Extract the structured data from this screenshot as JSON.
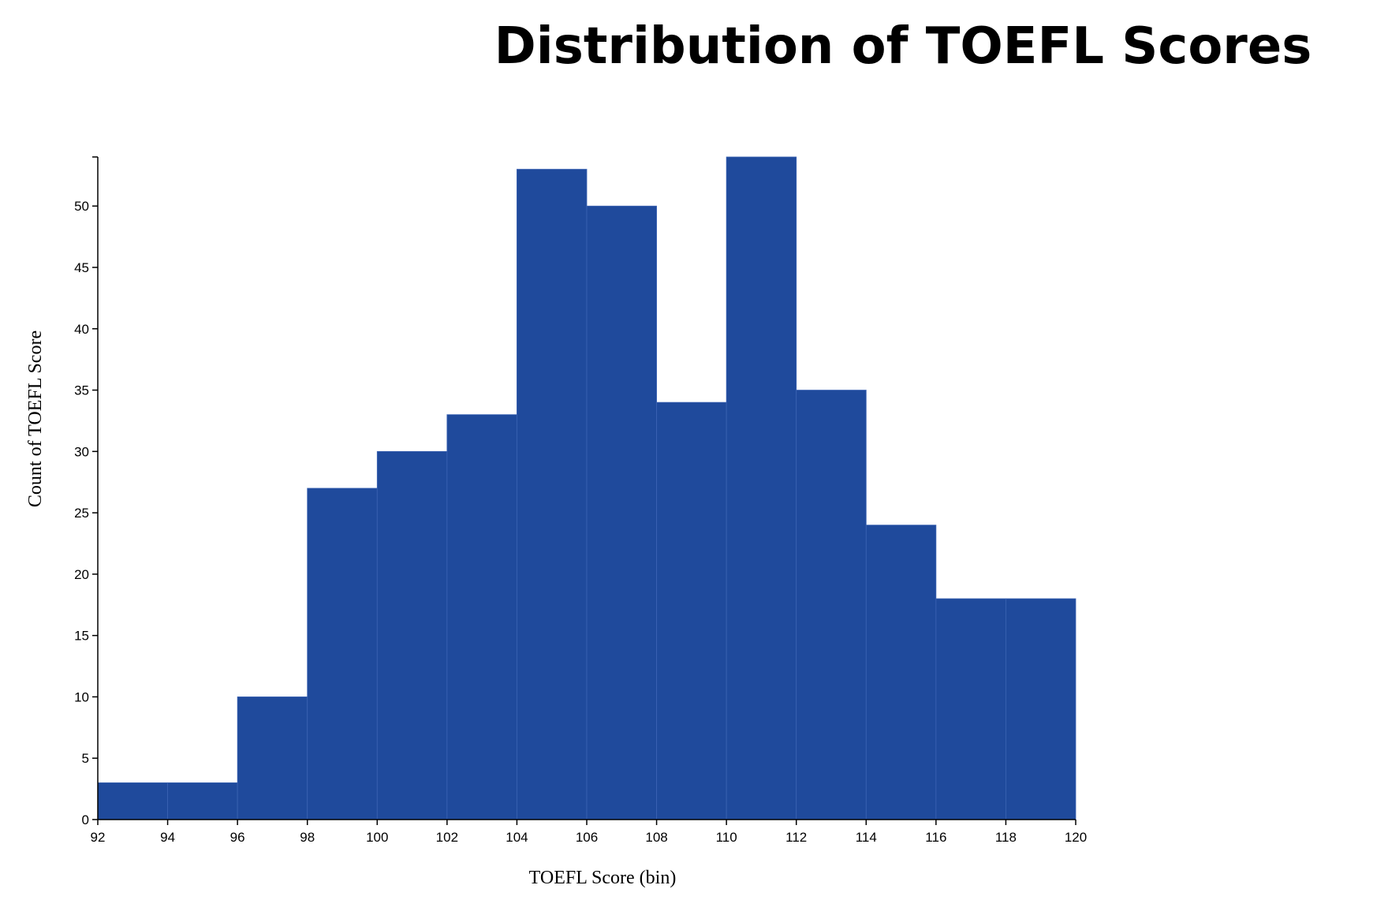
{
  "chart_data": {
    "type": "bar",
    "title": "Distribution of TOEFL Scores",
    "xlabel": "TOEFL Score (bin)",
    "ylabel": "Count of TOEFL Score",
    "bins": [
      {
        "x0": 92,
        "x1": 94,
        "count": 3
      },
      {
        "x0": 94,
        "x1": 96,
        "count": 3
      },
      {
        "x0": 96,
        "x1": 98,
        "count": 10
      },
      {
        "x0": 98,
        "x1": 100,
        "count": 27
      },
      {
        "x0": 100,
        "x1": 102,
        "count": 30
      },
      {
        "x0": 102,
        "x1": 104,
        "count": 33
      },
      {
        "x0": 104,
        "x1": 106,
        "count": 53
      },
      {
        "x0": 106,
        "x1": 108,
        "count": 50
      },
      {
        "x0": 108,
        "x1": 110,
        "count": 34
      },
      {
        "x0": 110,
        "x1": 112,
        "count": 54
      },
      {
        "x0": 112,
        "x1": 114,
        "count": 35
      },
      {
        "x0": 114,
        "x1": 116,
        "count": 24
      },
      {
        "x0": 116,
        "x1": 118,
        "count": 18
      },
      {
        "x0": 118,
        "x1": 120,
        "count": 18
      }
    ],
    "x_ticks": [
      92,
      94,
      96,
      98,
      100,
      102,
      104,
      106,
      108,
      110,
      112,
      114,
      116,
      118,
      120
    ],
    "y_ticks": [
      0,
      5,
      10,
      15,
      20,
      25,
      30,
      35,
      40,
      45,
      50
    ],
    "xlim": [
      92,
      120
    ],
    "ylim": [
      0,
      54
    ],
    "grid": false,
    "bar_color": "#1f4a9c"
  }
}
